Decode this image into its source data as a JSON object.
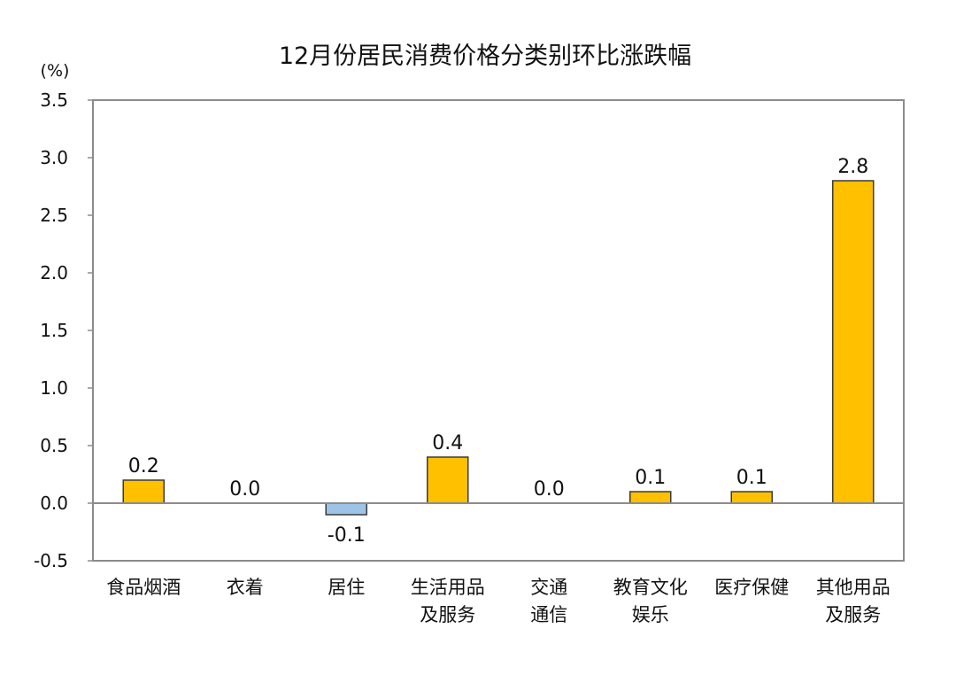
{
  "chart_data": {
    "type": "bar",
    "title": "12月份居民消费价格分类别环比涨跌幅",
    "ylabel": "(%)",
    "xlabel": "",
    "categories": [
      [
        "食品烟酒"
      ],
      [
        "衣着"
      ],
      [
        "居住"
      ],
      [
        "生活用品",
        "及服务"
      ],
      [
        "交通",
        "通信"
      ],
      [
        "教育文化",
        "娱乐"
      ],
      [
        "医疗保健"
      ],
      [
        "其他用品",
        "及服务"
      ]
    ],
    "values": [
      0.2,
      0.0,
      -0.1,
      0.4,
      0.0,
      0.1,
      0.1,
      2.8
    ],
    "data_labels": [
      "0.2",
      "0.0",
      "-0.1",
      "0.4",
      "0.0",
      "0.1",
      "0.1",
      "2.8"
    ],
    "ylim": [
      -0.5,
      3.5
    ],
    "yticks": [
      "-0.5",
      "0.0",
      "0.5",
      "1.0",
      "1.5",
      "2.0",
      "2.5",
      "3.0",
      "3.5"
    ],
    "grid": false,
    "legend": "none",
    "colors": {
      "positive": "#FFC000",
      "negative": "#9DC3E6",
      "outline": "#3a3a3a",
      "axis": "#8c8c8c"
    }
  }
}
